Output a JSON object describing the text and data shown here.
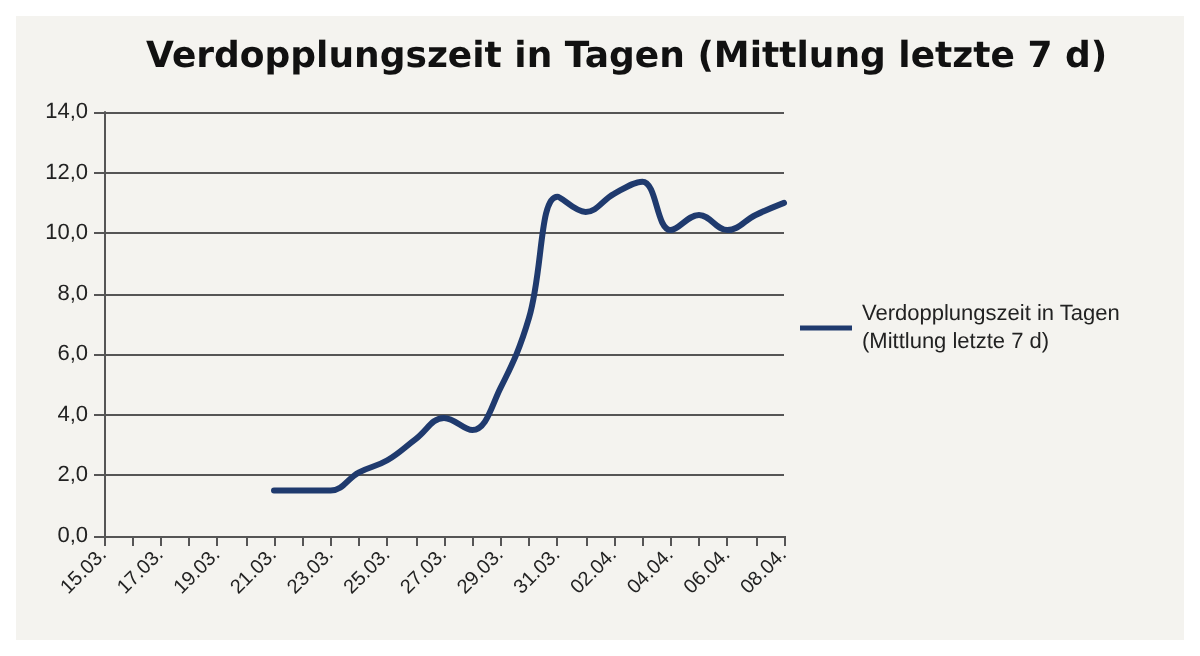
{
  "chart_data": {
    "type": "line",
    "title": "Verdopplungszeit in Tagen (Mittlung letzte 7 d)",
    "categories": [
      "15.03.",
      null,
      "17.03.",
      null,
      "19.03.",
      null,
      "21.03.",
      null,
      "23.03.",
      null,
      "25.03.",
      null,
      "27.03.",
      null,
      "29.03.",
      null,
      "31.03.",
      null,
      "02.04.",
      null,
      "04.04.",
      null,
      "06.04.",
      null,
      "08.04."
    ],
    "series": [
      {
        "name": "Verdopplungszeit in Tagen (Mittlung letzte 7 d)",
        "color": "#1f3a6e",
        "values": [
          null,
          null,
          null,
          null,
          null,
          null,
          1.5,
          1.5,
          1.5,
          2.1,
          2.5,
          3.2,
          3.9,
          3.5,
          4.9,
          7.2,
          11.2,
          10.7,
          11.3,
          11.7,
          10.1,
          10.6,
          10.1,
          10.6,
          11.0
        ]
      }
    ],
    "ylim": [
      0,
      14
    ],
    "yticks": [
      {
        "value": 0,
        "label": "0,0"
      },
      {
        "value": 2,
        "label": "2,0"
      },
      {
        "value": 4,
        "label": "4,0"
      },
      {
        "value": 6,
        "label": "6,0"
      },
      {
        "value": 8,
        "label": "8,0"
      },
      {
        "value": 10,
        "label": "10,0"
      },
      {
        "value": 12,
        "label": "12,0"
      },
      {
        "value": 14,
        "label": "14,0"
      }
    ],
    "grid": "y",
    "legend": "right",
    "marker": "none",
    "line_style": "solid"
  }
}
